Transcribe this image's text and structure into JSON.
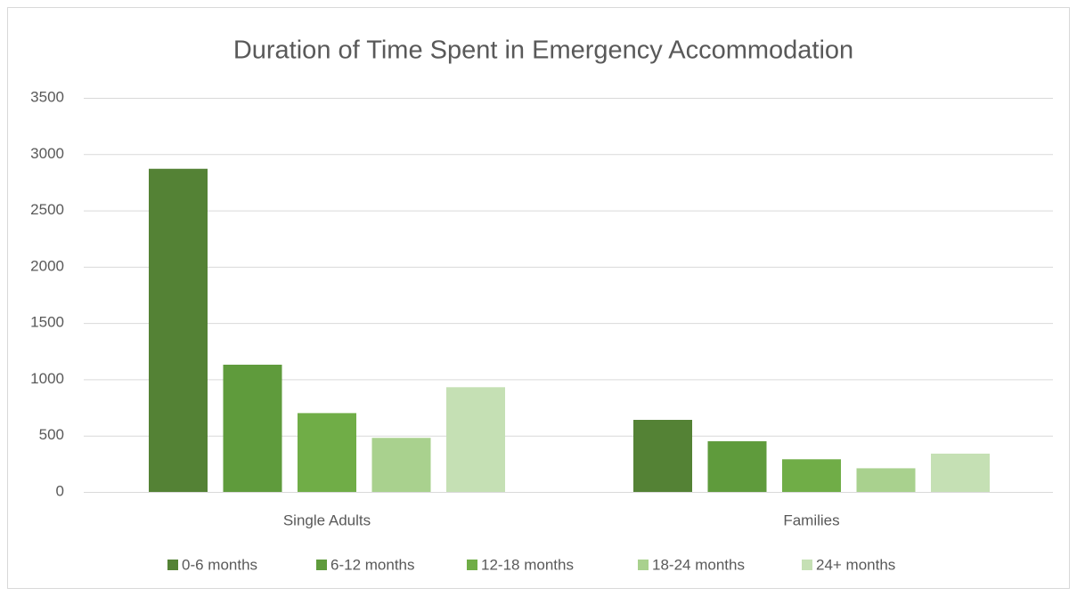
{
  "chart_data": {
    "type": "bar",
    "title": "Duration of Time Spent in Emergency Accommodation",
    "categories": [
      "Single Adults",
      "Families"
    ],
    "series": [
      {
        "name": "0-6 months",
        "color": "#548235",
        "values": [
          2870,
          640
        ]
      },
      {
        "name": "6-12 months",
        "color": "#5f9b3c",
        "values": [
          1130,
          450
        ]
      },
      {
        "name": "12-18 months",
        "color": "#70ad47",
        "values": [
          700,
          290
        ]
      },
      {
        "name": "18-24 months",
        "color": "#a9d18e",
        "values": [
          480,
          210
        ]
      },
      {
        "name": "24+ months",
        "color": "#c5e0b4",
        "values": [
          930,
          340
        ]
      }
    ],
    "ylim": [
      0,
      3500
    ],
    "yticks": [
      0,
      500,
      1000,
      1500,
      2000,
      2500,
      3000,
      3500
    ],
    "grid": true,
    "legend": "bottom"
  }
}
